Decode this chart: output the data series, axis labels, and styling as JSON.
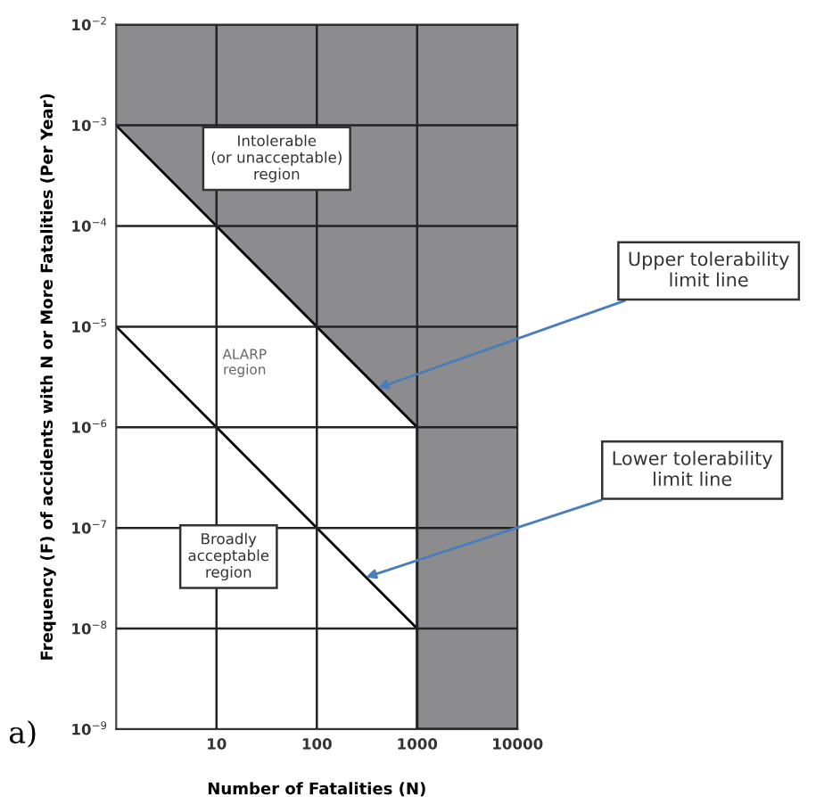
{
  "chart_data": {
    "type": "line",
    "xlabel": "Number of Fatalities (N)",
    "ylabel": "Frequency (F) of accidents with N or More Fatalities (Per Year)",
    "log": "xy",
    "grid": true,
    "marker": "none",
    "line_style": "solid",
    "xlim": [
      1,
      10000
    ],
    "ylim": [
      1e-09,
      0.01
    ],
    "xticks": [
      10,
      100,
      1000,
      10000
    ],
    "yticks": [
      {
        "value": 1e-09,
        "label": "10$^{−9}$"
      },
      {
        "value": 1e-08,
        "label": "10$^{−8}$"
      },
      {
        "value": 1e-07,
        "label": "10$^{−7}$"
      },
      {
        "value": 1e-06,
        "label": "10$^{−6}$"
      },
      {
        "value": 1e-05,
        "label": "10$^{−5}$"
      },
      {
        "value": 0.0001,
        "label": "10$^{−4}$"
      },
      {
        "value": 0.001,
        "label": "10$^{−3}$"
      },
      {
        "value": 0.01,
        "label": "10$^{−2}$"
      }
    ],
    "series": [
      {
        "name": "Upper tolerability\nlimit line",
        "color": "#000000",
        "x": [
          1,
          1000,
          1000,
          10000
        ],
        "values": [
          0.001,
          1e-06,
          1e-09,
          1e-09
        ]
      },
      {
        "name": "Lower tolerability\nlimit line",
        "color": "#000000",
        "x": [
          1,
          1000
        ],
        "values": [
          1e-05,
          1e-08
        ]
      }
    ],
    "annotations": [
      "Intolerable\n(or unacceptable)\nregion",
      "ALARP\nregion",
      "Broadly\nacceptable\nregion",
      "a)"
    ]
  }
}
